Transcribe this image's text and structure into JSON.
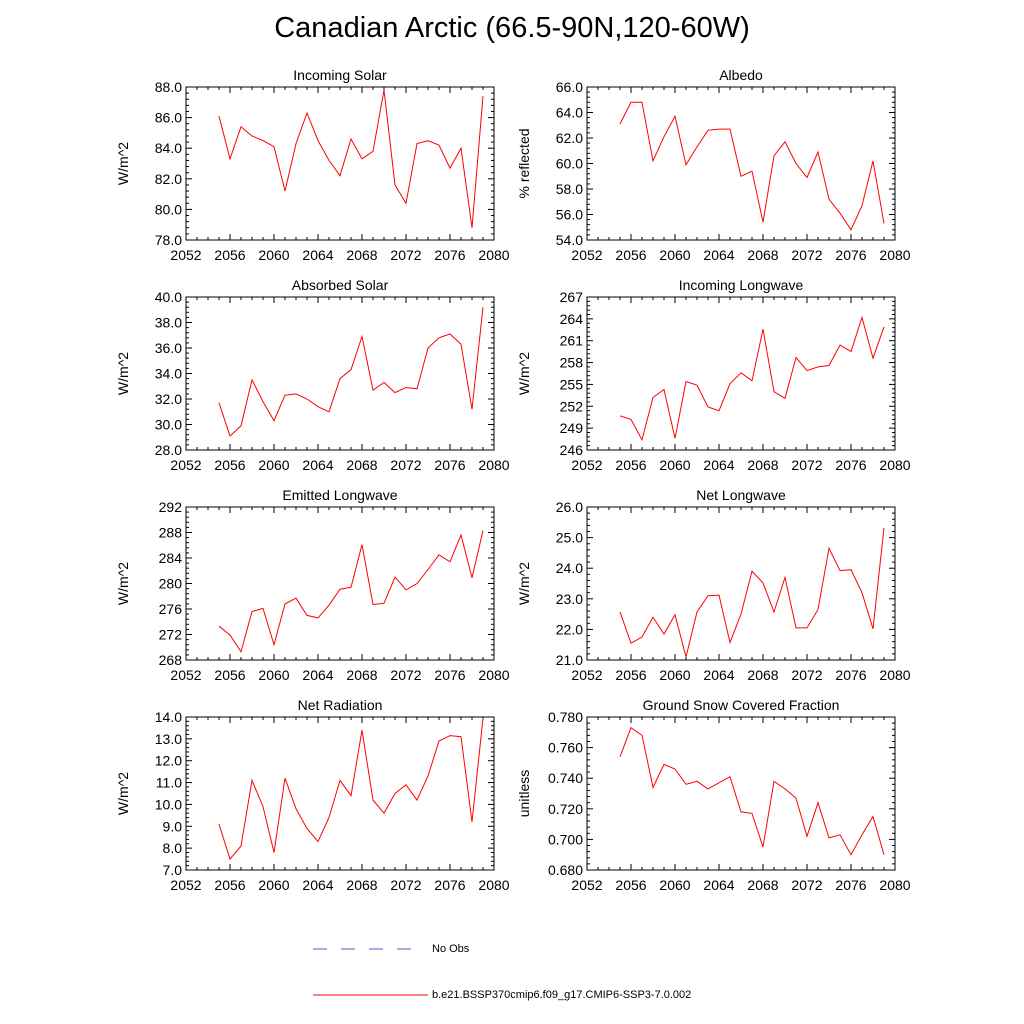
{
  "title": "Canadian Arctic (66.5-90N,120-60W)",
  "legend": {
    "obs_label": "No Obs",
    "model_label": "b.e21.BSSP370cmip6.f09_g17.CMIP6-SSP3-7.0.002",
    "obs_color": "#5555cc",
    "model_color": "#ff0000"
  },
  "chart_data": [
    {
      "type": "line",
      "title": "Incoming Solar",
      "ylabel": "W/m^2",
      "xlim": [
        2052,
        2080
      ],
      "ylim": [
        78,
        88
      ],
      "yticks": [
        "78.0",
        "80.0",
        "82.0",
        "84.0",
        "86.0",
        "88.0"
      ],
      "xticks": [
        "2052",
        "2056",
        "2060",
        "2064",
        "2068",
        "2072",
        "2076",
        "2080"
      ],
      "x": [
        2055,
        2056,
        2057,
        2058,
        2059,
        2060,
        2061,
        2062,
        2063,
        2064,
        2065,
        2066,
        2067,
        2068,
        2069,
        2070,
        2071,
        2072,
        2073,
        2074,
        2075,
        2076,
        2077,
        2078,
        2079
      ],
      "series": [
        {
          "values": [
            86.1,
            83.3,
            85.4,
            84.8,
            84.5,
            84.1,
            81.2,
            84.3,
            86.3,
            84.5,
            83.2,
            82.2,
            84.6,
            83.3,
            83.8,
            87.8,
            81.6,
            80.4,
            84.3,
            84.5,
            84.2,
            82.7,
            84.0,
            78.8,
            87.4
          ]
        }
      ]
    },
    {
      "type": "line",
      "title": "Albedo",
      "ylabel": "% reflected",
      "xlim": [
        2052,
        2080
      ],
      "ylim": [
        54,
        66
      ],
      "yticks": [
        "54.0",
        "56.0",
        "58.0",
        "60.0",
        "62.0",
        "64.0",
        "66.0"
      ],
      "xticks": [
        "2052",
        "2056",
        "2060",
        "2064",
        "2068",
        "2072",
        "2076",
        "2080"
      ],
      "x": [
        2055,
        2056,
        2057,
        2058,
        2059,
        2060,
        2061,
        2062,
        2063,
        2064,
        2065,
        2066,
        2067,
        2068,
        2069,
        2070,
        2071,
        2072,
        2073,
        2074,
        2075,
        2076,
        2077,
        2078,
        2079
      ],
      "series": [
        {
          "values": [
            63.1,
            64.8,
            64.8,
            60.2,
            62.1,
            63.7,
            59.9,
            61.3,
            62.6,
            62.7,
            62.7,
            59.0,
            59.4,
            55.4,
            60.6,
            61.7,
            60.0,
            58.9,
            60.9,
            57.2,
            56.1,
            54.8,
            56.7,
            60.2,
            55.3
          ]
        }
      ]
    },
    {
      "type": "line",
      "title": "Absorbed Solar",
      "ylabel": "W/m^2",
      "xlim": [
        2052,
        2080
      ],
      "ylim": [
        28,
        40
      ],
      "yticks": [
        "28.0",
        "30.0",
        "32.0",
        "34.0",
        "36.0",
        "38.0",
        "40.0"
      ],
      "xticks": [
        "2052",
        "2056",
        "2060",
        "2064",
        "2068",
        "2072",
        "2076",
        "2080"
      ],
      "x": [
        2055,
        2056,
        2057,
        2058,
        2059,
        2060,
        2061,
        2062,
        2063,
        2064,
        2065,
        2066,
        2067,
        2068,
        2069,
        2070,
        2071,
        2072,
        2073,
        2074,
        2075,
        2076,
        2077,
        2078,
        2079
      ],
      "series": [
        {
          "values": [
            31.7,
            29.1,
            29.9,
            33.5,
            31.8,
            30.3,
            32.3,
            32.4,
            32.0,
            31.4,
            31.0,
            33.6,
            34.3,
            36.9,
            32.7,
            33.3,
            32.5,
            32.9,
            32.8,
            36.0,
            36.8,
            37.1,
            36.3,
            31.2,
            39.2
          ]
        }
      ]
    },
    {
      "type": "line",
      "title": "Incoming Longwave",
      "ylabel": "W/m^2",
      "xlim": [
        2052,
        2080
      ],
      "ylim": [
        246,
        267
      ],
      "yticks": [
        "246",
        "249",
        "252",
        "255",
        "258",
        "261",
        "264",
        "267"
      ],
      "xticks": [
        "2052",
        "2056",
        "2060",
        "2064",
        "2068",
        "2072",
        "2076",
        "2080"
      ],
      "x": [
        2055,
        2056,
        2057,
        2058,
        2059,
        2060,
        2061,
        2062,
        2063,
        2064,
        2065,
        2066,
        2067,
        2068,
        2069,
        2070,
        2071,
        2072,
        2073,
        2074,
        2075,
        2076,
        2077,
        2078,
        2079
      ],
      "series": [
        {
          "values": [
            250.7,
            250.2,
            247.4,
            253.2,
            254.3,
            247.6,
            255.4,
            254.9,
            251.9,
            251.4,
            255.1,
            256.6,
            255.5,
            262.6,
            254.0,
            253.1,
            258.7,
            256.9,
            257.4,
            257.6,
            260.4,
            259.5,
            264.2,
            258.6,
            262.9
          ]
        }
      ]
    },
    {
      "type": "line",
      "title": "Emitted Longwave",
      "ylabel": "W/m^2",
      "xlim": [
        2052,
        2080
      ],
      "ylim": [
        268,
        292
      ],
      "yticks": [
        "268",
        "272",
        "276",
        "280",
        "284",
        "288",
        "292"
      ],
      "xticks": [
        "2052",
        "2056",
        "2060",
        "2064",
        "2068",
        "2072",
        "2076",
        "2080"
      ],
      "x": [
        2055,
        2056,
        2057,
        2058,
        2059,
        2060,
        2061,
        2062,
        2063,
        2064,
        2065,
        2066,
        2067,
        2068,
        2069,
        2070,
        2071,
        2072,
        2073,
        2074,
        2075,
        2076,
        2077,
        2078,
        2079
      ],
      "series": [
        {
          "values": [
            273.3,
            271.9,
            269.3,
            275.6,
            276.1,
            270.4,
            276.8,
            277.7,
            275.0,
            274.6,
            276.6,
            279.1,
            279.4,
            286.1,
            276.7,
            276.9,
            281.0,
            279.0,
            280.0,
            282.2,
            284.5,
            283.4,
            287.6,
            280.9,
            288.3
          ]
        }
      ]
    },
    {
      "type": "line",
      "title": "Net Longwave",
      "ylabel": "W/m^2",
      "xlim": [
        2052,
        2080
      ],
      "ylim": [
        21,
        26
      ],
      "yticks": [
        "21.0",
        "22.0",
        "23.0",
        "24.0",
        "25.0",
        "26.0"
      ],
      "xticks": [
        "2052",
        "2056",
        "2060",
        "2064",
        "2068",
        "2072",
        "2076",
        "2080"
      ],
      "x": [
        2055,
        2056,
        2057,
        2058,
        2059,
        2060,
        2061,
        2062,
        2063,
        2064,
        2065,
        2066,
        2067,
        2068,
        2069,
        2070,
        2071,
        2072,
        2073,
        2074,
        2075,
        2076,
        2077,
        2078,
        2079
      ],
      "series": [
        {
          "values": [
            22.57,
            21.55,
            21.75,
            22.4,
            21.85,
            22.48,
            21.1,
            22.57,
            23.1,
            23.12,
            21.57,
            22.5,
            23.9,
            23.52,
            22.57,
            23.7,
            22.05,
            22.05,
            22.65,
            24.65,
            23.92,
            23.95,
            23.2,
            22.02,
            25.32
          ]
        }
      ]
    },
    {
      "type": "line",
      "title": "Net Radiation",
      "ylabel": "W/m^2",
      "xlim": [
        2052,
        2080
      ],
      "ylim": [
        7,
        14
      ],
      "yticks": [
        "7.0",
        "8.0",
        "9.0",
        "10.0",
        "11.0",
        "12.0",
        "13.0",
        "14.0"
      ],
      "xticks": [
        "2052",
        "2056",
        "2060",
        "2064",
        "2068",
        "2072",
        "2076",
        "2080"
      ],
      "x": [
        2055,
        2056,
        2057,
        2058,
        2059,
        2060,
        2061,
        2062,
        2063,
        2064,
        2065,
        2066,
        2067,
        2068,
        2069,
        2070,
        2071,
        2072,
        2073,
        2074,
        2075,
        2076,
        2077,
        2078,
        2079
      ],
      "series": [
        {
          "values": [
            9.1,
            7.5,
            8.1,
            11.1,
            9.9,
            7.8,
            11.2,
            9.8,
            8.9,
            8.3,
            9.4,
            11.1,
            10.4,
            13.4,
            10.2,
            9.6,
            10.5,
            10.9,
            10.2,
            11.3,
            12.9,
            13.15,
            13.1,
            9.2,
            13.95
          ]
        }
      ]
    },
    {
      "type": "line",
      "title": "Ground Snow Covered Fraction",
      "ylabel": "unitless",
      "xlim": [
        2052,
        2080
      ],
      "ylim": [
        0.68,
        0.78
      ],
      "yticks": [
        "0.680",
        "0.700",
        "0.720",
        "0.740",
        "0.760",
        "0.780"
      ],
      "xticks": [
        "2052",
        "2056",
        "2060",
        "2064",
        "2068",
        "2072",
        "2076",
        "2080"
      ],
      "x": [
        2055,
        2056,
        2057,
        2058,
        2059,
        2060,
        2061,
        2062,
        2063,
        2064,
        2065,
        2066,
        2067,
        2068,
        2069,
        2070,
        2071,
        2072,
        2073,
        2074,
        2075,
        2076,
        2077,
        2078,
        2079
      ],
      "series": [
        {
          "values": [
            0.754,
            0.773,
            0.768,
            0.734,
            0.749,
            0.746,
            0.736,
            0.738,
            0.733,
            0.737,
            0.741,
            0.718,
            0.717,
            0.695,
            0.738,
            0.733,
            0.727,
            0.702,
            0.724,
            0.701,
            0.703,
            0.69,
            0.703,
            0.715,
            0.69
          ]
        }
      ]
    }
  ]
}
